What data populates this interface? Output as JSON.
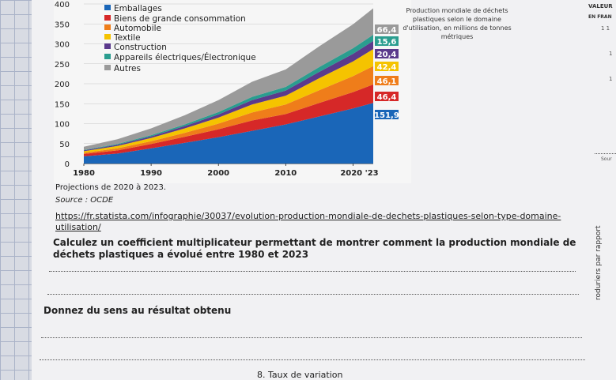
{
  "chart_data": {
    "type": "area",
    "title": "Production mondiale de déchets plastiques selon le domaine d'utilisation, en millions de tonnes métriques",
    "x": [
      1980,
      1985,
      1990,
      1995,
      2000,
      2005,
      2010,
      2015,
      2020,
      2023
    ],
    "x_ticks": [
      "1980",
      "1990",
      "2000",
      "2010",
      "2020 '23"
    ],
    "y_ticks": [
      "0",
      "50",
      "100",
      "150",
      "200",
      "250",
      "300",
      "350",
      "400"
    ],
    "ylim": [
      0,
      400
    ],
    "series": [
      {
        "name": "Emballages",
        "color": "#1a66b8",
        "label": "151,9",
        "values": [
          18,
          25,
          38,
          52,
          66,
          82,
          98,
          118,
          138,
          151.9
        ]
      },
      {
        "name": "Biens de grande consommation",
        "color": "#d62828",
        "label": "46,4",
        "values": [
          6,
          8,
          11,
          15,
          20,
          26,
          26,
          34,
          41,
          46.4
        ]
      },
      {
        "name": "Automobile",
        "color": "#ef7d1a",
        "label": "46,1",
        "values": [
          3,
          5,
          7,
          10,
          14,
          20,
          24,
          32,
          40,
          46.1
        ]
      },
      {
        "name": "Textile",
        "color": "#f5c300",
        "label": "42,4",
        "values": [
          4,
          6,
          8,
          11,
          15,
          20,
          22,
          30,
          37,
          42.4
        ]
      },
      {
        "name": "Construction",
        "color": "#5b3a8c",
        "label": "20,4",
        "values": [
          2,
          3,
          4,
          6,
          8,
          11,
          13,
          16,
          19,
          20.4
        ]
      },
      {
        "name": "Appareils électriques/Électronique",
        "color": "#2a9d8f",
        "label": "15,6",
        "values": [
          1,
          2,
          3,
          4,
          6,
          8,
          9,
          12,
          14,
          15.6
        ]
      },
      {
        "name": "Autres",
        "color": "#9a9a9a",
        "label": "66,4",
        "values": [
          8,
          12,
          17,
          23,
          30,
          38,
          44,
          52,
          60,
          66.4
        ]
      }
    ]
  },
  "right_panel": {
    "title": "Production mondiale de déchets plastiques selon le domaine d'utilisation, en millions de tonnes métriques",
    "valeur": "VALEUR",
    "en_france": "EN FRAN",
    "num1": "1 1",
    "num2": "1",
    "num3": "1",
    "source_short": "Sour"
  },
  "notes": {
    "projection": "Projections de 2020 à 2023.",
    "source": "Source : OCDE",
    "url": "https://fr.statista.com/infographie/30037/evolution-production-mondiale-de-dechets-plastiques-selon-type-domaine-utilisation/"
  },
  "questions": {
    "q1": "Calculez un coefficient multiplicateur permettant de montrer comment la production mondiale de déchets plastiques a évolué entre 1980 et 2023",
    "q2": "Donnez du sens au résultat obtenu"
  },
  "footer": "8. Taux de variation",
  "vertical_text": "roduriers par rapport"
}
